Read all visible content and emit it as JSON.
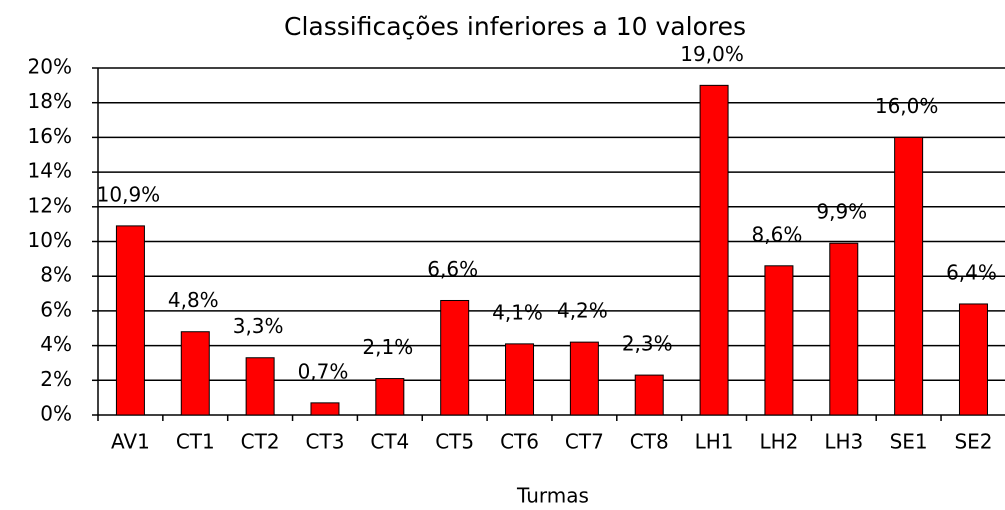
{
  "chart_data": {
    "type": "bar",
    "title": "Classificações inferiores a 10 valores",
    "x_label": "Turmas",
    "categories": [
      "AV1",
      "CT1",
      "CT2",
      "CT3",
      "CT4",
      "CT5",
      "CT6",
      "CT7",
      "CT8",
      "LH1",
      "LH2",
      "LH3",
      "SE1",
      "SE2"
    ],
    "values": [
      10.9,
      4.8,
      3.3,
      0.7,
      2.1,
      6.6,
      4.1,
      4.2,
      2.3,
      19.0,
      8.6,
      9.9,
      16.0,
      6.4
    ],
    "value_labels": [
      "10,9%",
      "4,8%",
      "3,3%",
      "0,7%",
      "2,1%",
      "6,6%",
      "4,1%",
      "4,2%",
      "2,3%",
      "19,0%",
      "8,6%",
      "9,9%",
      "16,0%",
      "6,4%"
    ],
    "color": "#ff0000",
    "ylim": [
      0,
      20
    ],
    "yticks": [
      {
        "value": 0,
        "label": "0%"
      },
      {
        "value": 2,
        "label": "2%"
      },
      {
        "value": 4,
        "label": "4%"
      },
      {
        "value": 6,
        "label": "6%"
      },
      {
        "value": 8,
        "label": "8%"
      },
      {
        "value": 10,
        "label": "10%"
      },
      {
        "value": 12,
        "label": "12%"
      },
      {
        "value": 14,
        "label": "14%"
      },
      {
        "value": 16,
        "label": "16%"
      },
      {
        "value": 18,
        "label": "18%"
      },
      {
        "value": 20,
        "label": "20%"
      }
    ],
    "grid": true
  }
}
